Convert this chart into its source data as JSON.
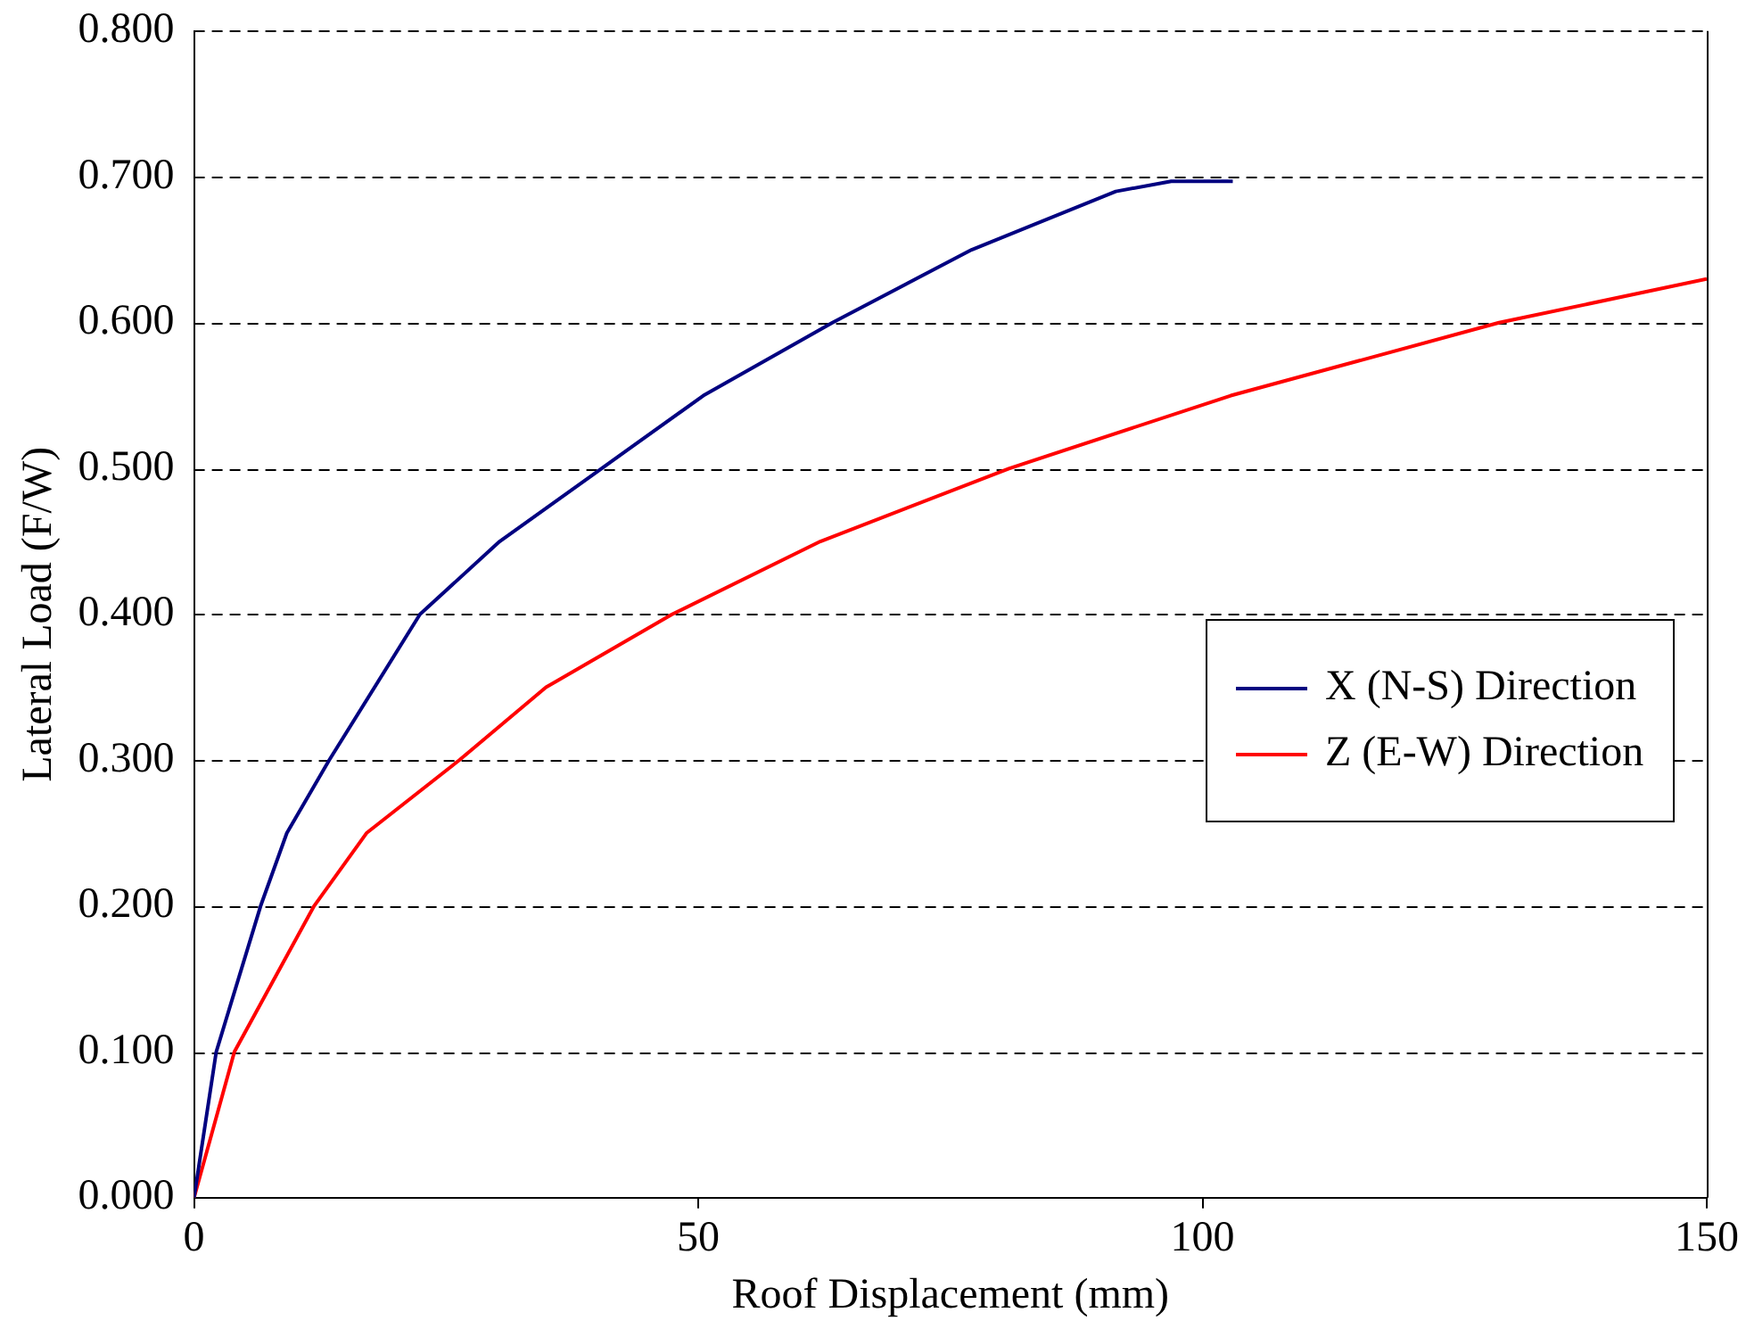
{
  "chart_data": {
    "type": "line",
    "xlabel": "Roof Displacement (mm)",
    "ylabel": "Lateral Load (F/W)",
    "xlim": [
      0,
      150
    ],
    "xticks": [
      0,
      50,
      100,
      150
    ],
    "ylim": [
      0,
      0.8
    ],
    "yticks": [
      {
        "value": 0,
        "label": "0.000"
      },
      {
        "value": 0.1,
        "label": "0.100"
      },
      {
        "value": 0.2,
        "label": "0.200"
      },
      {
        "value": 0.3,
        "label": "0.300"
      },
      {
        "value": 0.4,
        "label": "0.400"
      },
      {
        "value": 0.5,
        "label": "0.500"
      },
      {
        "value": 0.6,
        "label": "0.600"
      },
      {
        "value": 0.7,
        "label": "0.700"
      },
      {
        "value": 0.8,
        "label": "0.800"
      }
    ],
    "grid": "y",
    "legend": "right",
    "marker": "none",
    "line_style": "solid",
    "series": [
      {
        "name": "X (N-S) Direction",
        "color": "#000080",
        "x": [
          0,
          2.2,
          6.6,
          9.2,
          13.4,
          22.4,
          30.3,
          40.4,
          50.5,
          63.3,
          77.1,
          91.4,
          96.9,
          103
        ],
        "values": [
          0,
          0.1,
          0.2,
          0.25,
          0.3,
          0.4,
          0.45,
          0.5,
          0.55,
          0.6,
          0.65,
          0.69,
          0.697,
          0.697
        ]
      },
      {
        "name": "Z (E-W) Direction",
        "color": "#ff0000",
        "x": [
          0,
          4,
          11.9,
          17.1,
          26.3,
          34.9,
          47.4,
          62.1,
          80.8,
          102.8,
          129.4,
          150
        ],
        "values": [
          0,
          0.1,
          0.2,
          0.25,
          0.3,
          0.35,
          0.4,
          0.45,
          0.5,
          0.55,
          0.6,
          0.63
        ]
      }
    ]
  }
}
